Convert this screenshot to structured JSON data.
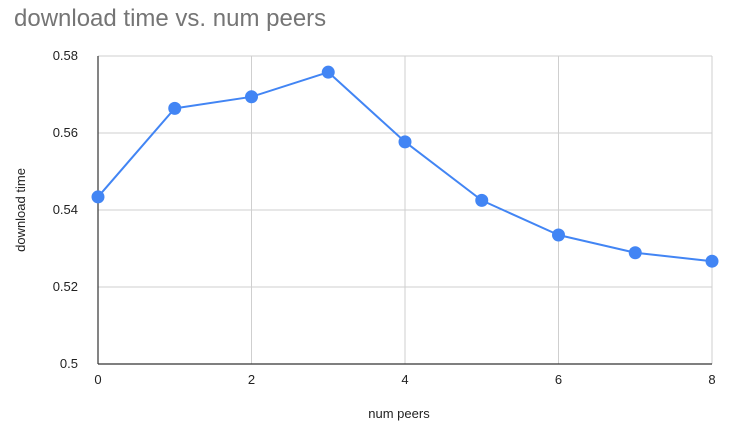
{
  "chart_data": {
    "type": "line",
    "title": "download time vs. num peers",
    "xlabel": "num peers",
    "ylabel": "download time",
    "xlim": [
      0,
      8
    ],
    "ylim": [
      0.5,
      0.58
    ],
    "xticks": [
      0,
      2,
      4,
      6,
      8
    ],
    "xtick_labels": [
      "0",
      "2",
      "4",
      "6",
      "8"
    ],
    "yticks": [
      0.5,
      0.52,
      0.54,
      0.56,
      0.58
    ],
    "ytick_labels": [
      "0.5",
      "0.52",
      "0.54",
      "0.56",
      "0.58"
    ],
    "grid": true,
    "legend": "none",
    "series": [
      {
        "color": "#4285f4",
        "x": [
          0,
          1,
          2,
          3,
          4,
          5,
          6,
          7,
          8
        ],
        "y": [
          0.5434,
          0.5664,
          0.5694,
          0.5758,
          0.5577,
          0.5425,
          0.5335,
          0.5289,
          0.5267
        ]
      }
    ]
  }
}
